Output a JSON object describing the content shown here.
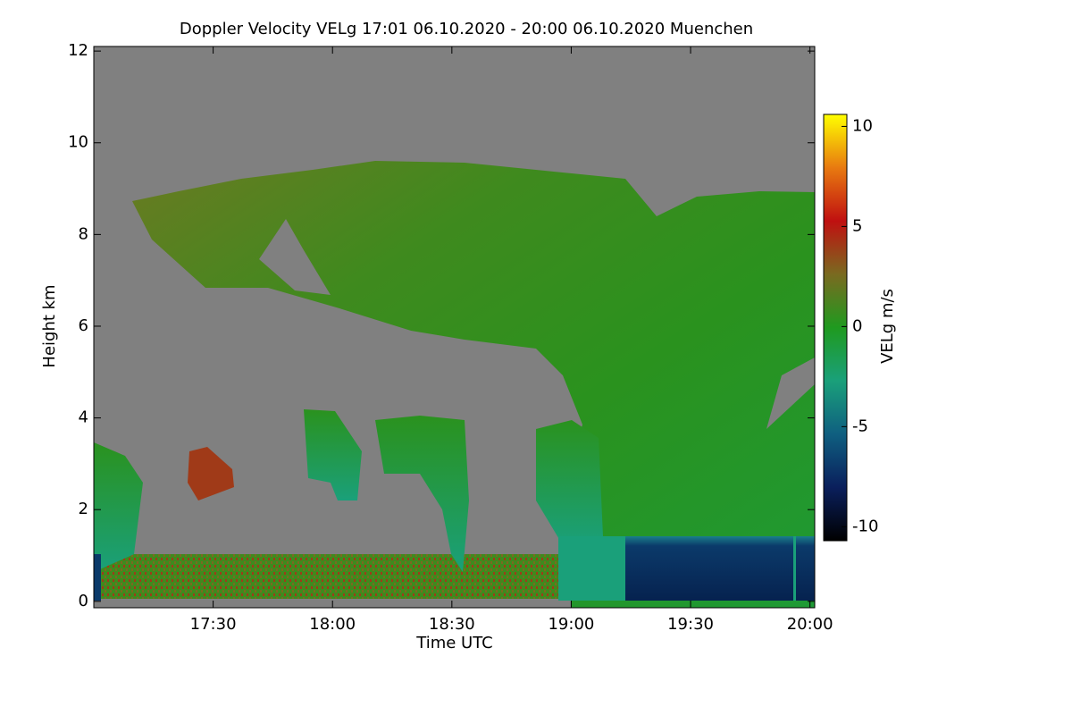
{
  "chart_data": {
    "type": "heatmap",
    "title": "Doppler Velocity VELg   17:01 06.10.2020 - 20:00 06.10.2020 Muenchen",
    "xlabel": "Time UTC",
    "ylabel": "Height km",
    "colorbar_label": "VELg m/s",
    "xlim": [
      17.0,
      20.02
    ],
    "xticks": [
      {
        "value": 17.5,
        "label": "17:30"
      },
      {
        "value": 18.0,
        "label": "18:00"
      },
      {
        "value": 18.5,
        "label": "18:30"
      },
      {
        "value": 19.0,
        "label": "19:00"
      },
      {
        "value": 19.5,
        "label": "19:30"
      },
      {
        "value": 20.0,
        "label": "20:00"
      }
    ],
    "ylim": [
      -0.14,
      12.1
    ],
    "yticks": [
      0,
      2,
      4,
      6,
      8,
      10,
      12
    ],
    "zlim": [
      -10.7,
      10.6
    ],
    "zticks": [
      -10,
      -5,
      0,
      5,
      10
    ],
    "colormap": [
      "#000000",
      "#0a1f5c",
      "#0f5f80",
      "#1aa07a",
      "#1f9a1f",
      "#7a6a20",
      "#c01010",
      "#e87a10",
      "#ffff00"
    ]
  }
}
